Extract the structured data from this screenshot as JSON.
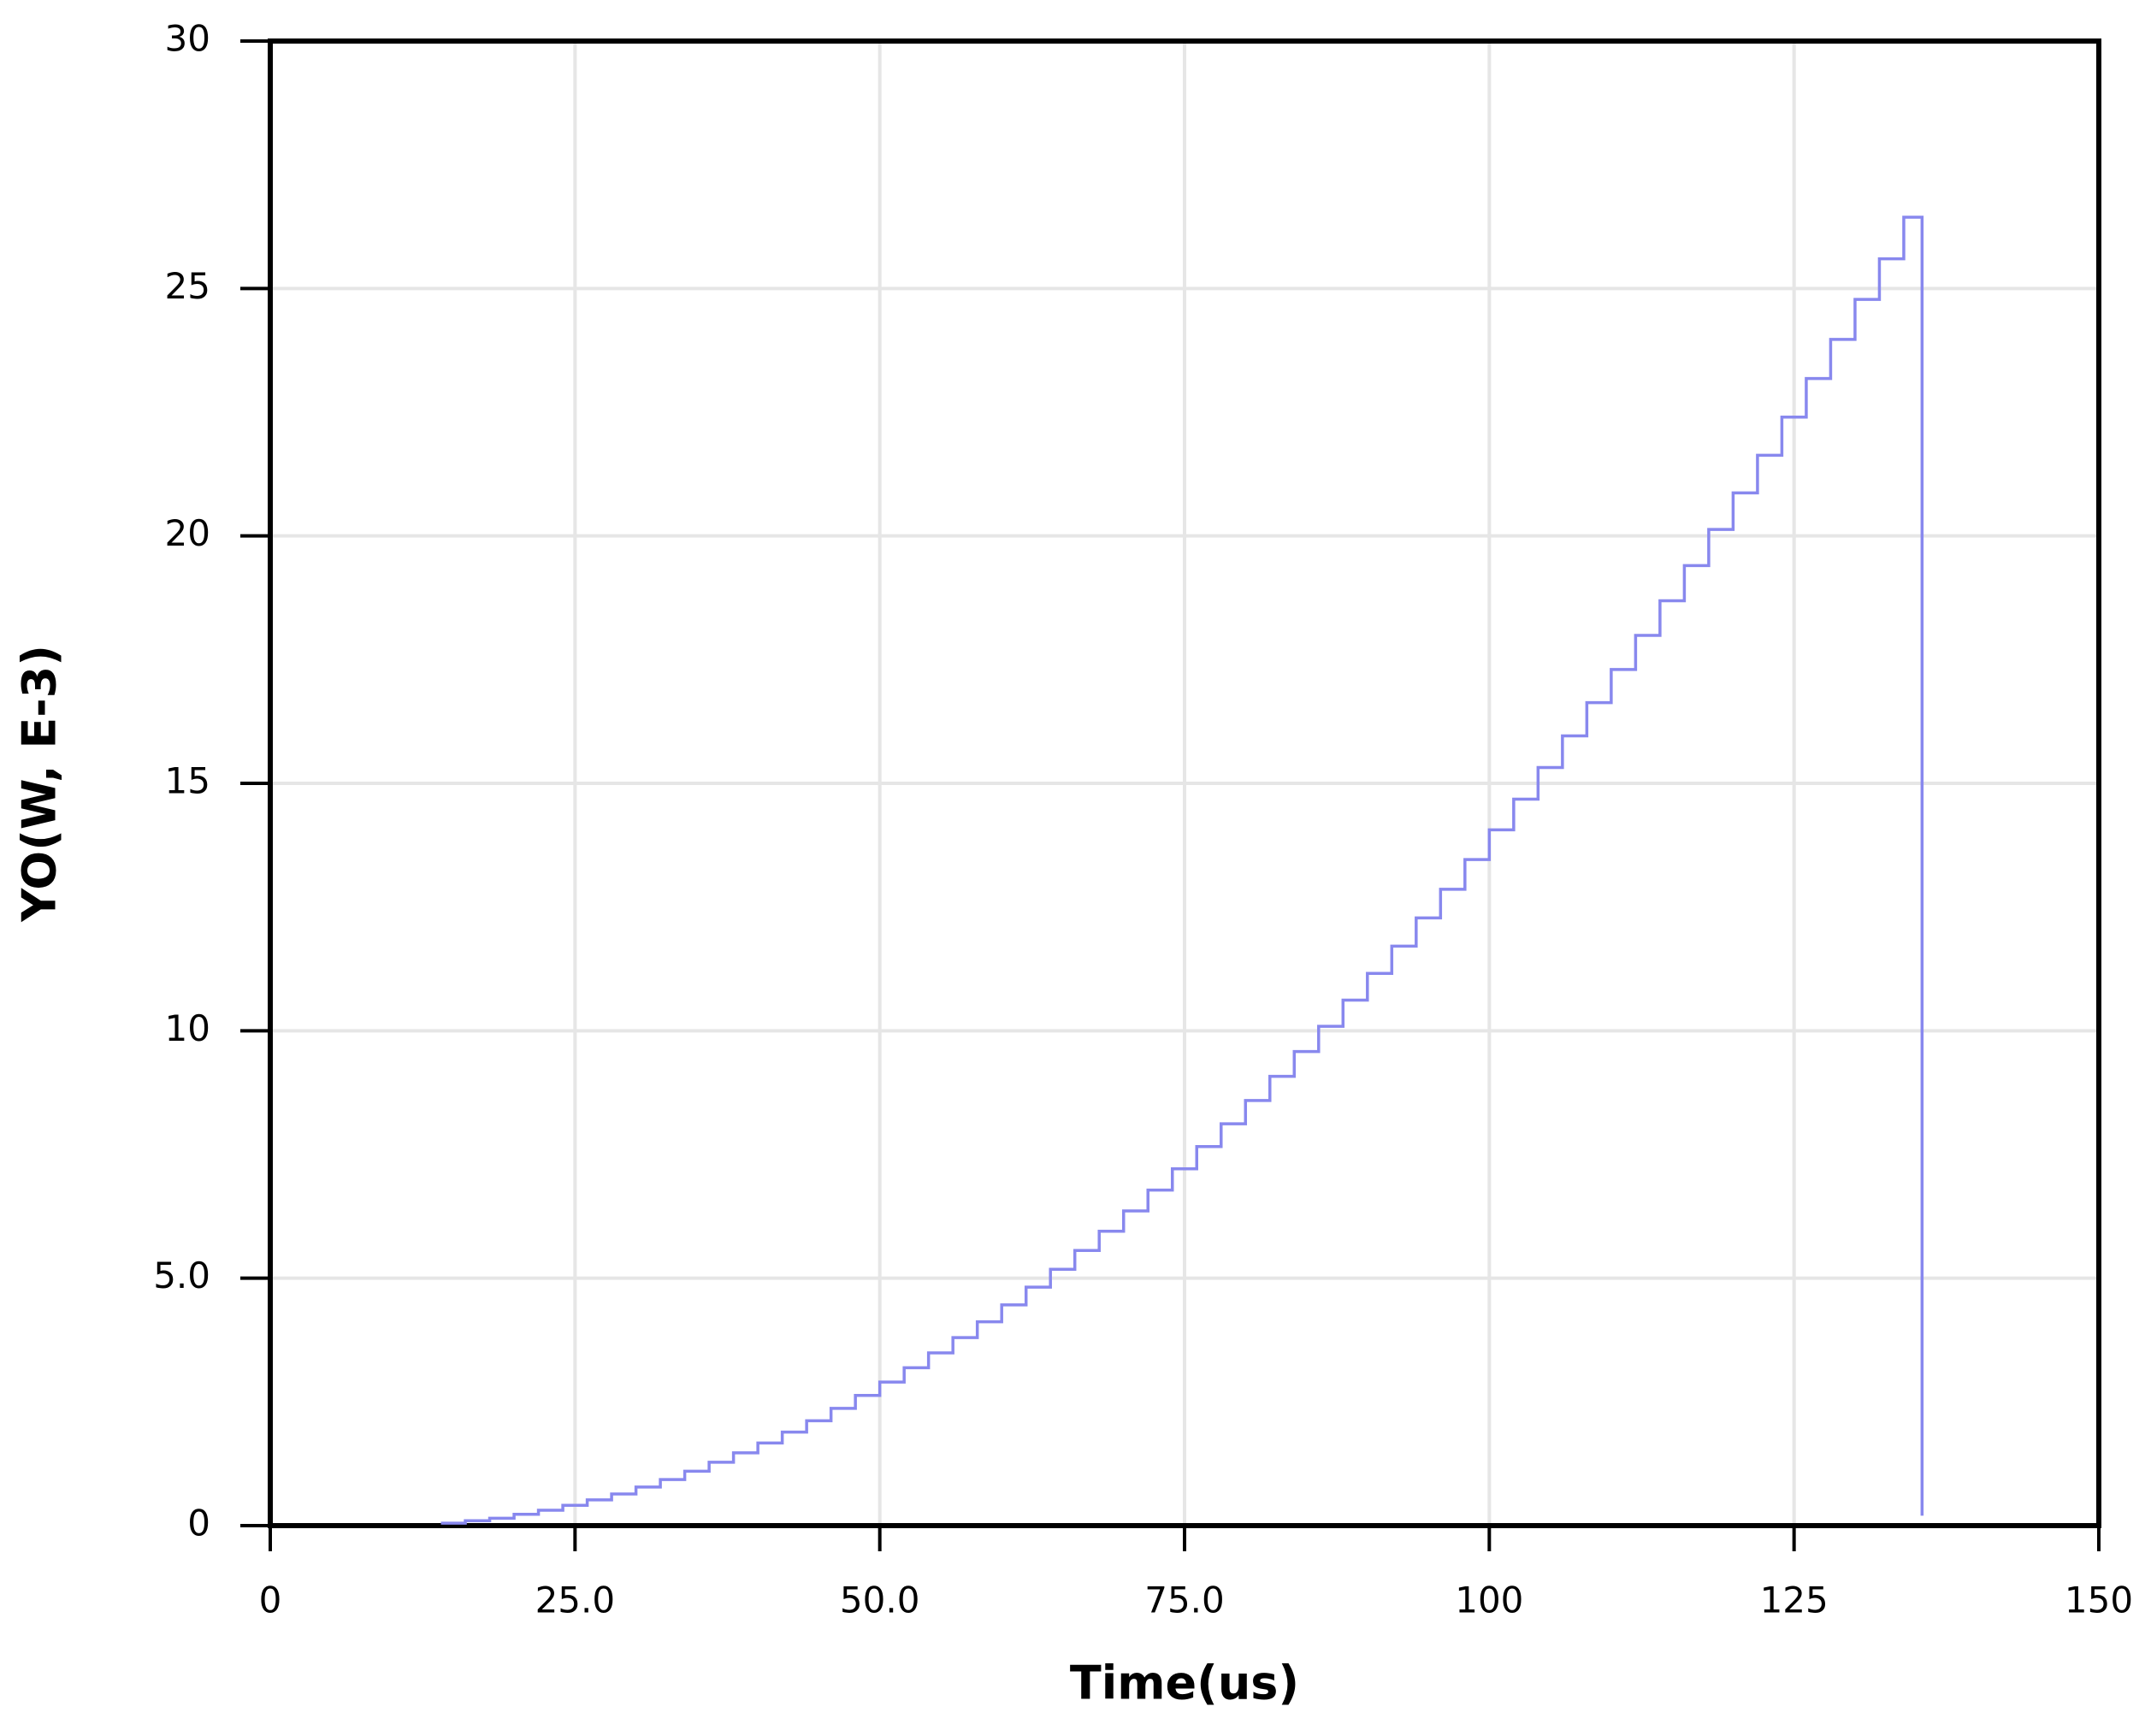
{
  "chart_data": {
    "type": "line",
    "step": "post",
    "x_label": "Time(us)",
    "y_label": "YO(W, E-3)",
    "x": [
      14,
      16,
      18,
      20,
      22,
      24,
      26,
      28,
      30,
      32,
      34,
      36,
      38,
      40,
      42,
      44,
      46,
      48,
      50,
      52,
      54,
      56,
      58,
      60,
      62,
      64,
      66,
      68,
      70,
      72,
      74,
      76,
      78,
      80,
      82,
      84,
      86,
      88,
      90,
      92,
      94,
      96,
      98,
      100,
      102,
      104,
      106,
      108,
      110,
      112,
      114,
      116,
      118,
      120,
      122,
      124,
      126,
      128,
      130,
      132,
      134,
      135.5
    ],
    "series": [
      {
        "color": "#8888ee",
        "values": [
          0.05,
          0.1,
          0.15,
          0.23,
          0.31,
          0.41,
          0.52,
          0.64,
          0.78,
          0.93,
          1.1,
          1.28,
          1.47,
          1.67,
          1.89,
          2.12,
          2.37,
          2.63,
          2.9,
          3.19,
          3.49,
          3.8,
          4.12,
          4.46,
          4.82,
          5.18,
          5.56,
          5.95,
          6.36,
          6.78,
          7.21,
          7.66,
          8.12,
          8.59,
          9.08,
          9.58,
          10.09,
          10.62,
          11.16,
          11.71,
          12.28,
          12.86,
          13.46,
          14.06,
          14.68,
          15.32,
          15.96,
          16.63,
          17.3,
          17.99,
          18.69,
          19.4,
          20.13,
          20.87,
          21.63,
          22.4,
          23.18,
          23.97,
          24.78,
          25.6,
          26.44,
          0.2
        ]
      }
    ],
    "xlim": [
      0,
      150
    ],
    "xticks": [
      0,
      {
        "value": 25,
        "label": "25.0"
      },
      {
        "value": 50,
        "label": "50.0"
      },
      {
        "value": 75,
        "label": "75.0"
      },
      100,
      125,
      150
    ],
    "ylim": [
      0,
      30
    ],
    "yticks": [
      0,
      {
        "value": 5,
        "label": "5.0"
      },
      10,
      15,
      20,
      25,
      30
    ],
    "grid": true
  }
}
